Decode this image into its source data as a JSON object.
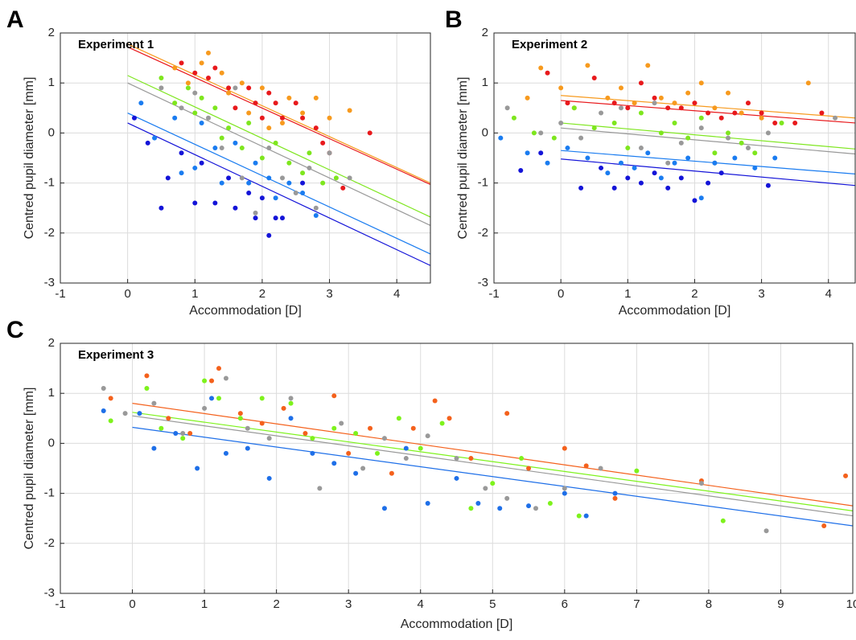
{
  "chart_data": [
    {
      "type": "scatter",
      "label": "A",
      "title": "Experiment 1",
      "xlabel": "Accommodation [D]",
      "ylabel": "Centred pupil diameter [mm]",
      "xlim": [
        -1,
        4.5
      ],
      "ylim": [
        -3,
        2
      ],
      "xticks": [
        -1,
        0,
        1,
        2,
        3,
        4
      ],
      "yticks": [
        -3,
        -2,
        -1,
        0,
        1,
        2
      ],
      "grid": true,
      "series": [
        {
          "color": "#e8191c",
          "x": [
            0.8,
            1.0,
            1.2,
            1.3,
            1.5,
            1.6,
            1.8,
            1.9,
            2.0,
            2.1,
            2.2,
            2.3,
            2.5,
            2.6,
            2.8,
            2.9,
            3.0,
            3.2,
            3.6
          ],
          "values": [
            1.4,
            1.2,
            1.1,
            1.3,
            0.9,
            0.5,
            0.9,
            0.6,
            0.3,
            0.8,
            0.6,
            0.3,
            0.6,
            0.3,
            0.1,
            -0.2,
            -0.4,
            -1.1,
            0.0
          ],
          "fit": {
            "x": [
              0,
              4.5
            ],
            "values": [
              1.72,
              -1.03
            ]
          }
        },
        {
          "color": "#f79a1e",
          "x": [
            0.7,
            0.9,
            1.1,
            1.2,
            1.4,
            1.5,
            1.7,
            1.8,
            2.0,
            2.1,
            2.3,
            2.4,
            2.6,
            2.8,
            3.0,
            3.3
          ],
          "values": [
            1.3,
            1.0,
            1.4,
            1.6,
            1.2,
            0.8,
            1.0,
            0.4,
            0.9,
            0.1,
            0.2,
            0.7,
            0.4,
            0.7,
            0.3,
            0.45
          ],
          "fit": {
            "x": [
              0,
              4.5
            ],
            "values": [
              1.78,
              -1.0
            ]
          }
        },
        {
          "color": "#7ee61e",
          "x": [
            0.5,
            0.7,
            0.9,
            1.0,
            1.1,
            1.3,
            1.4,
            1.5,
            1.7,
            1.8,
            2.0,
            2.2,
            2.4,
            2.6,
            2.7,
            2.9,
            3.1
          ],
          "values": [
            1.1,
            0.6,
            0.9,
            0.4,
            0.7,
            0.5,
            -0.1,
            0.1,
            -0.3,
            0.2,
            -0.5,
            -0.2,
            -0.6,
            -0.8,
            -0.4,
            -1.0,
            -0.9
          ],
          "fit": {
            "x": [
              0,
              4.5
            ],
            "values": [
              1.15,
              -1.68
            ]
          }
        },
        {
          "color": "#999999",
          "x": [
            0.5,
            0.8,
            1.0,
            1.2,
            1.4,
            1.6,
            1.7,
            1.9,
            2.1,
            2.3,
            2.5,
            2.7,
            2.8,
            3.0,
            3.3
          ],
          "values": [
            0.9,
            0.5,
            0.8,
            0.3,
            -0.3,
            0.9,
            -0.9,
            -1.6,
            -0.3,
            -0.9,
            -1.2,
            -0.7,
            -1.5,
            -0.4,
            -0.9
          ],
          "fit": {
            "x": [
              0,
              4.5
            ],
            "values": [
              1.0,
              -1.85
            ]
          }
        },
        {
          "color": "#1a7cf0",
          "x": [
            0.2,
            0.4,
            0.7,
            0.8,
            1.0,
            1.1,
            1.3,
            1.4,
            1.6,
            1.8,
            1.9,
            2.1,
            2.2,
            2.4,
            2.6,
            2.8
          ],
          "values": [
            0.6,
            -0.1,
            0.3,
            -0.8,
            -0.7,
            0.2,
            -0.3,
            -1.0,
            -0.2,
            -1.0,
            -0.6,
            -0.9,
            -1.3,
            -1.0,
            -1.2,
            -1.65
          ],
          "fit": {
            "x": [
              0,
              4.5
            ],
            "values": [
              0.4,
              -2.42
            ]
          }
        },
        {
          "color": "#1414d8",
          "x": [
            0.1,
            0.3,
            0.5,
            0.6,
            0.8,
            1.0,
            1.1,
            1.3,
            1.5,
            1.6,
            1.8,
            1.9,
            2.0,
            2.2,
            2.3,
            2.6,
            2.1
          ],
          "values": [
            0.3,
            -0.2,
            -1.5,
            -0.9,
            -0.4,
            -1.4,
            -0.6,
            -1.4,
            -0.9,
            -1.5,
            -1.2,
            -1.7,
            -1.3,
            -1.7,
            -1.7,
            -1.0,
            -2.05
          ],
          "fit": {
            "x": [
              0,
              4.5
            ],
            "values": [
              0.2,
              -2.65
            ]
          }
        }
      ]
    },
    {
      "type": "scatter",
      "label": "B",
      "title": "Experiment 2",
      "xlabel": "Accommodation [D]",
      "ylabel": "Centred pupil diameter [mm]",
      "xlim": [
        -1,
        4.4
      ],
      "ylim": [
        -3,
        2
      ],
      "xticks": [
        -1,
        0,
        1,
        2,
        3,
        4
      ],
      "yticks": [
        -3,
        -2,
        -1,
        0,
        1,
        2
      ],
      "grid": true,
      "series": [
        {
          "color": "#e8191c",
          "x": [
            -0.2,
            0.1,
            0.5,
            0.8,
            1.0,
            1.2,
            1.4,
            1.6,
            1.8,
            2.0,
            2.2,
            2.4,
            2.6,
            2.8,
            3.0,
            3.2,
            3.5,
            3.9
          ],
          "values": [
            1.2,
            0.6,
            1.1,
            0.6,
            0.5,
            1.0,
            0.7,
            0.5,
            0.5,
            0.6,
            0.4,
            0.3,
            0.4,
            0.6,
            0.4,
            0.2,
            0.2,
            0.4
          ],
          "fit": {
            "x": [
              0,
              4.4
            ],
            "values": [
              0.65,
              0.2
            ]
          }
        },
        {
          "color": "#f79a1e",
          "x": [
            -0.5,
            -0.3,
            0,
            0.2,
            0.4,
            0.7,
            0.9,
            1.1,
            1.3,
            1.5,
            1.7,
            1.9,
            2.1,
            2.3,
            2.5,
            2.7,
            3.0,
            3.7
          ],
          "values": [
            0.7,
            1.3,
            0.9,
            0.5,
            1.35,
            0.7,
            0.9,
            0.6,
            1.35,
            0.7,
            0.6,
            0.8,
            1.0,
            0.5,
            0.8,
            0.4,
            0.3,
            1.0
          ],
          "fit": {
            "x": [
              0,
              4.4
            ],
            "values": [
              0.75,
              0.3
            ]
          }
        },
        {
          "color": "#7ee61e",
          "x": [
            -0.7,
            -0.4,
            -0.1,
            0.2,
            0.5,
            0.8,
            1.0,
            1.2,
            1.5,
            1.7,
            1.9,
            2.1,
            2.3,
            2.5,
            2.7,
            2.9,
            3.3
          ],
          "values": [
            0.3,
            0.0,
            -0.1,
            0.5,
            0.1,
            0.2,
            -0.3,
            0.4,
            0.0,
            0.2,
            -0.1,
            0.3,
            -0.4,
            0.0,
            -0.2,
            -0.4,
            0.2
          ],
          "fit": {
            "x": [
              0,
              4.4
            ],
            "values": [
              0.2,
              -0.32
            ]
          }
        },
        {
          "color": "#999999",
          "x": [
            -0.8,
            -0.3,
            0.0,
            0.3,
            0.6,
            0.9,
            1.2,
            1.4,
            1.6,
            1.8,
            2.1,
            2.3,
            2.5,
            2.8,
            3.1,
            4.1
          ],
          "values": [
            0.5,
            0.0,
            0.2,
            -0.1,
            0.4,
            0.5,
            -0.3,
            0.6,
            -0.6,
            -0.2,
            0.1,
            -0.6,
            -0.1,
            -0.3,
            0.0,
            0.3
          ],
          "fit": {
            "x": [
              0,
              4.4
            ],
            "values": [
              0.1,
              -0.42
            ]
          }
        },
        {
          "color": "#1a7cf0",
          "x": [
            -0.9,
            -0.5,
            -0.2,
            0.1,
            0.4,
            0.7,
            0.9,
            1.1,
            1.3,
            1.5,
            1.7,
            1.9,
            2.1,
            2.3,
            2.6,
            2.9,
            3.2
          ],
          "values": [
            -0.1,
            -0.4,
            -0.6,
            -0.3,
            -0.5,
            -0.8,
            -0.6,
            -0.7,
            -0.4,
            -0.9,
            -0.6,
            -0.5,
            -1.3,
            -0.6,
            -0.5,
            -0.7,
            -0.5
          ],
          "fit": {
            "x": [
              0,
              4.4
            ],
            "values": [
              -0.35,
              -0.82
            ]
          }
        },
        {
          "color": "#1414d8",
          "x": [
            -0.6,
            -0.3,
            0.3,
            0.6,
            0.8,
            1.0,
            1.2,
            1.4,
            1.6,
            1.8,
            2.0,
            2.2,
            2.4,
            3.1
          ],
          "values": [
            -0.75,
            -0.4,
            -1.1,
            -0.7,
            -1.1,
            -0.9,
            -1.0,
            -0.8,
            -1.1,
            -0.9,
            -1.35,
            -1.0,
            -0.8,
            -1.05
          ],
          "fit": {
            "x": [
              0,
              4.4
            ],
            "values": [
              -0.52,
              -1.05
            ]
          }
        }
      ]
    },
    {
      "type": "scatter",
      "label": "C",
      "title": "Experiment 3",
      "xlabel": "Accommodation [D]",
      "ylabel": "Centred pupil diameter [mm]",
      "xlim": [
        -1,
        10
      ],
      "ylim": [
        -3,
        2
      ],
      "xticks": [
        -1,
        0,
        1,
        2,
        3,
        4,
        5,
        6,
        7,
        8,
        9,
        10
      ],
      "yticks": [
        -3,
        -2,
        -1,
        0,
        1,
        2
      ],
      "grid": true,
      "series": [
        {
          "color": "#f4611c",
          "x": [
            -0.3,
            0.2,
            0.5,
            0.8,
            1.1,
            1.2,
            1.5,
            1.8,
            2.1,
            2.4,
            2.8,
            3.0,
            3.3,
            3.6,
            3.9,
            4.2,
            4.4,
            4.7,
            5.2,
            5.5,
            6.0,
            6.3,
            6.7,
            7.9,
            9.6,
            9.9
          ],
          "values": [
            0.9,
            1.35,
            0.5,
            0.2,
            1.25,
            1.5,
            0.6,
            0.4,
            0.7,
            0.2,
            0.95,
            -0.2,
            0.3,
            -0.6,
            0.3,
            0.85,
            0.5,
            -0.3,
            0.6,
            -0.5,
            -0.1,
            -0.45,
            -1.1,
            -0.75,
            -1.65,
            -0.65
          ],
          "fit": {
            "x": [
              0,
              10
            ],
            "values": [
              0.8,
              -1.25
            ]
          }
        },
        {
          "color": "#7ef21c",
          "x": [
            -0.3,
            0.2,
            0.4,
            0.7,
            1.0,
            1.2,
            1.5,
            1.8,
            2.2,
            2.5,
            2.8,
            3.1,
            3.4,
            3.7,
            4.0,
            4.3,
            4.7,
            5.0,
            5.4,
            5.8,
            6.2,
            7.0,
            8.2
          ],
          "values": [
            0.45,
            1.1,
            0.3,
            0.1,
            1.25,
            0.9,
            0.5,
            0.9,
            0.8,
            0.1,
            0.3,
            0.2,
            -0.2,
            0.5,
            -0.1,
            0.4,
            -1.3,
            -0.8,
            -0.3,
            -1.2,
            -1.45,
            -0.55,
            -1.55
          ],
          "fit": {
            "x": [
              0,
              10
            ],
            "values": [
              0.62,
              -1.35
            ]
          }
        },
        {
          "color": "#999999",
          "x": [
            -0.4,
            -0.1,
            0.3,
            0.7,
            1.0,
            1.3,
            1.6,
            1.9,
            2.2,
            2.6,
            2.9,
            3.2,
            3.5,
            3.8,
            4.1,
            4.5,
            4.9,
            5.2,
            5.6,
            6.0,
            6.5,
            7.9,
            8.8
          ],
          "values": [
            1.1,
            0.6,
            0.8,
            0.2,
            0.7,
            1.3,
            0.3,
            0.1,
            0.9,
            -0.9,
            0.4,
            -0.5,
            0.1,
            -0.3,
            0.15,
            -0.3,
            -0.9,
            -1.1,
            -1.3,
            -0.9,
            -0.5,
            -0.8,
            -1.75
          ],
          "fit": {
            "x": [
              0,
              10
            ],
            "values": [
              0.55,
              -1.45
            ]
          }
        },
        {
          "color": "#1e6fe8",
          "x": [
            -0.4,
            0.1,
            0.3,
            0.6,
            0.9,
            1.1,
            1.3,
            1.6,
            1.9,
            2.2,
            2.5,
            2.8,
            3.1,
            3.5,
            3.8,
            4.1,
            4.5,
            4.8,
            5.1,
            5.5,
            6.0,
            6.3,
            6.7
          ],
          "values": [
            0.65,
            0.6,
            -0.1,
            0.2,
            -0.5,
            0.9,
            -0.2,
            -0.1,
            -0.7,
            0.5,
            -0.2,
            -0.4,
            -0.6,
            -1.3,
            -0.1,
            -1.2,
            -0.7,
            -1.2,
            -1.3,
            -1.25,
            -1.0,
            -1.45,
            -1.0
          ],
          "fit": {
            "x": [
              0,
              10
            ],
            "values": [
              0.32,
              -1.65
            ]
          }
        }
      ]
    }
  ]
}
